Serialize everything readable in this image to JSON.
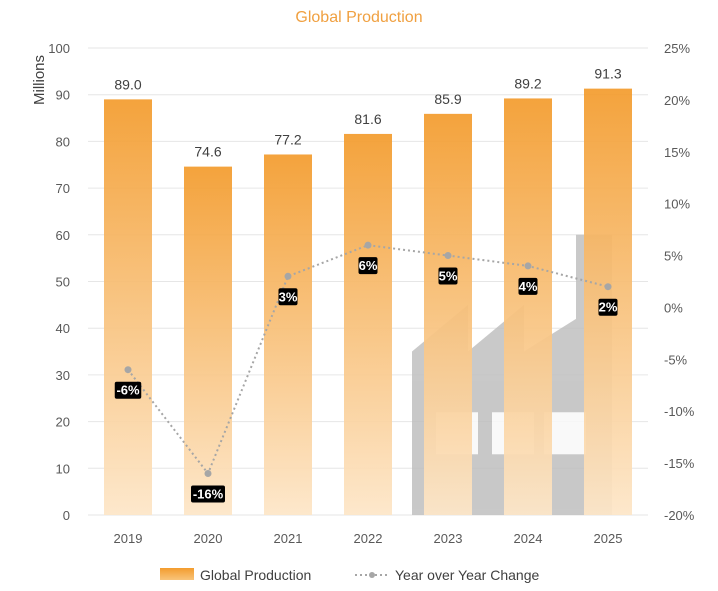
{
  "chart_data": {
    "type": "bar",
    "title": "Global Production",
    "ylabel": "Millions",
    "categories": [
      "2019",
      "2020",
      "2021",
      "2022",
      "2023",
      "2024",
      "2025"
    ],
    "ylim": [
      0,
      100
    ],
    "y_ticks": [
      "0",
      "10",
      "20",
      "30",
      "40",
      "50",
      "60",
      "70",
      "80",
      "90",
      "100"
    ],
    "y2lim": [
      -20,
      25
    ],
    "y2_ticks": [
      "-20%",
      "-15%",
      "-10%",
      "-5%",
      "0%",
      "5%",
      "10%",
      "15%",
      "20%",
      "25%"
    ],
    "grid": true,
    "legend_position": "bottom",
    "series": [
      {
        "name": "Global Production",
        "type": "bar",
        "axis": "left",
        "values": [
          89.0,
          74.6,
          77.2,
          81.6,
          85.9,
          89.2,
          91.3
        ],
        "labels": [
          "89.0",
          "74.6",
          "77.2",
          "81.6",
          "85.9",
          "89.2",
          "91.3"
        ],
        "color_top": "#F39C2E",
        "color_bottom": "#FDE6C8"
      },
      {
        "name": "Year over Year Change",
        "type": "line",
        "axis": "right",
        "style": "dotted",
        "values": [
          -6,
          -16,
          3,
          6,
          5,
          4,
          2
        ],
        "labels": [
          "-6%",
          "-16%",
          "3%",
          "6%",
          "5%",
          "4%",
          "2%"
        ],
        "color": "#A6A6A6"
      }
    ],
    "title_color": "#F0A040",
    "factory_watermark_color": "#BFBFBF"
  }
}
